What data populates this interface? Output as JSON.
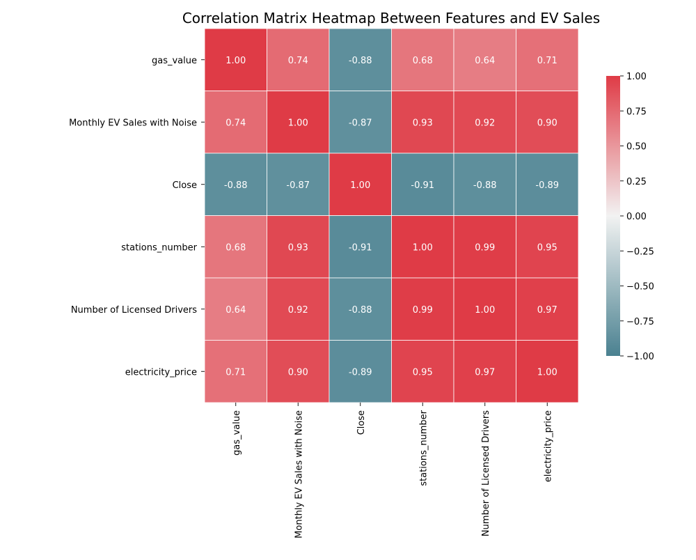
{
  "chart_data": {
    "type": "heatmap",
    "title": "Correlation Matrix Heatmap Between Features and EV Sales",
    "rows": [
      "gas_value",
      "Monthly EV Sales with Noise",
      "Close",
      "stations_number",
      "Number of Licensed Drivers",
      "electricity_price"
    ],
    "columns": [
      "gas_value",
      "Monthly EV Sales with Noise",
      "Close",
      "stations_number",
      "Number of Licensed Drivers",
      "electricity_price"
    ],
    "values": [
      [
        1.0,
        0.74,
        -0.88,
        0.68,
        0.64,
        0.71
      ],
      [
        0.74,
        1.0,
        -0.87,
        0.93,
        0.92,
        0.9
      ],
      [
        -0.88,
        -0.87,
        1.0,
        -0.91,
        -0.88,
        -0.89
      ],
      [
        0.68,
        0.93,
        -0.91,
        1.0,
        0.99,
        0.95
      ],
      [
        0.64,
        0.92,
        -0.88,
        0.99,
        1.0,
        0.97
      ],
      [
        0.71,
        0.9,
        -0.89,
        0.95,
        0.97,
        1.0
      ]
    ],
    "value_format": "2 decimals",
    "colorbar": {
      "range": [
        -1.0,
        1.0
      ],
      "ticks": [
        "1.00",
        "0.75",
        "0.50",
        "0.25",
        "0.00",
        "−0.25",
        "−0.50",
        "−0.75",
        "−1.00"
      ],
      "tick_values": [
        1.0,
        0.75,
        0.5,
        0.25,
        0.0,
        -0.25,
        -0.5,
        -0.75,
        -1.0
      ]
    },
    "colors": {
      "negative": "#4a8190",
      "center": "#f2f2f2",
      "positive": "#df3b46"
    },
    "annotations_color": "#ffffff",
    "grid_line_color": "#ffffff"
  }
}
